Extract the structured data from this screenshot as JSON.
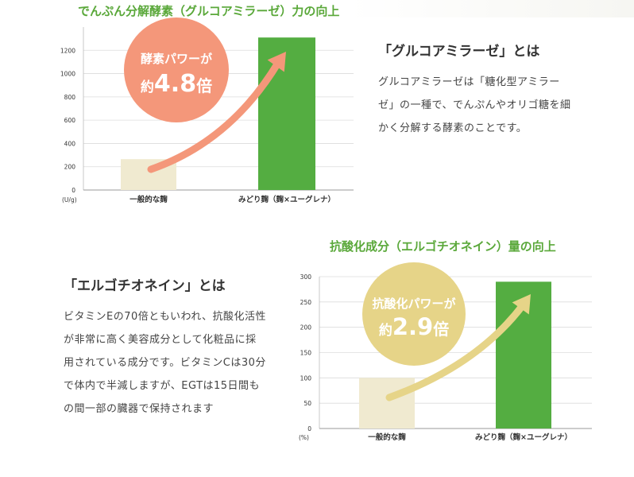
{
  "chart_data": [
    {
      "type": "bar",
      "title": "でんぷん分解酵素（グルコアミラーゼ）力の向上",
      "unit_label": "(U/g)",
      "categories": [
        "一般的な麹",
        "みどり麹（麹×ユーグレナ）"
      ],
      "values": [
        265,
        1310
      ],
      "yticks": [
        0,
        200,
        400,
        600,
        800,
        1000,
        1200
      ],
      "ylim": [
        0,
        1400
      ],
      "colors": [
        "#f0ead0",
        "#54ad41"
      ],
      "grid": true,
      "badge": {
        "line1": "酵素パワーが",
        "prefix": "約",
        "value": "4.8",
        "suffix": "倍",
        "color": "#f4977a"
      },
      "arrow_color": "#f4977a"
    },
    {
      "type": "bar",
      "title": "抗酸化成分（エルゴチオネイン）量の向上",
      "unit_label": "(%)",
      "categories": [
        "一般的な麹",
        "みどり麹（麹×ユーグレナ）"
      ],
      "values": [
        100,
        290
      ],
      "yticks": [
        0,
        50,
        100,
        150,
        200,
        250,
        300
      ],
      "ylim": [
        0,
        300
      ],
      "colors": [
        "#f0ead0",
        "#54ad41"
      ],
      "grid": true,
      "badge": {
        "line1": "抗酸化パワーが",
        "prefix": "約",
        "value": "2.9",
        "suffix": "倍",
        "color": "#e6d488"
      },
      "arrow_color": "#e6d488"
    }
  ],
  "section1": {
    "heading": "「グルコアミラーゼ」とは",
    "lines": [
      "グルコアミラーゼは「糖化型アミラー",
      "ゼ」の一種で、でんぷんやオリゴ糖を細",
      "かく分解する酵素のことです。"
    ]
  },
  "section2": {
    "heading": "「エルゴチオネイン」とは",
    "lines": [
      "ビタミンEの70倍ともいわれ、抗酸化活性",
      "が非常に高く美容成分として化粧品に採",
      "用されている成分です。ビタミンCは30分",
      "で体内で半減しますが、EGTは15日間も",
      "の間一部の臓器で保持されます"
    ]
  }
}
